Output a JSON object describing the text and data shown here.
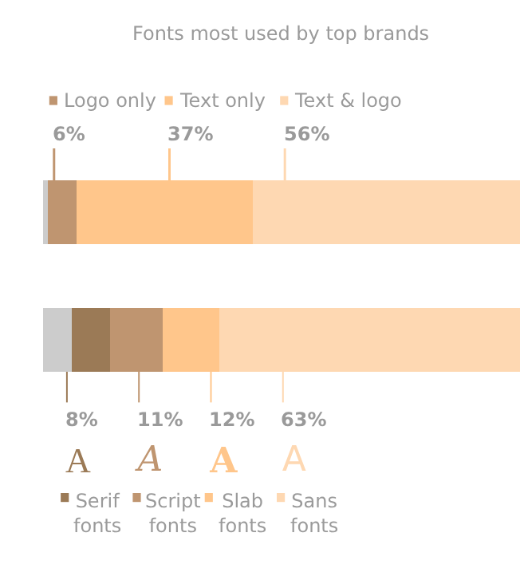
{
  "chart_data": {
    "type": "bar",
    "title": "Fonts most used by top brands",
    "orientation": "horizontal",
    "stacked": true,
    "tick_labels": false,
    "xlim": [
      0,
      100
    ],
    "annotations": [
      "A",
      "A",
      "A",
      "A"
    ],
    "legend": "bottom left",
    "categories": [
      null,
      null
    ],
    "series": [
      {
        "color": "#cccccc",
        "values": [
          1,
          6
        ]
      },
      {
        "name": "Logo only",
        "color": "#bf9570",
        "values": [
          6,
          null
        ],
        "value_labels": [
          "6%",
          null
        ]
      },
      {
        "name": "Text only",
        "color": "#ffc68b",
        "values": [
          37,
          null
        ],
        "value_labels": [
          "37%",
          null
        ]
      },
      {
        "name": "Text & logo",
        "color": "#fed8b2",
        "values": [
          56,
          null
        ],
        "value_labels": [
          "56%",
          null
        ]
      },
      {
        "name": "Serif fonts",
        "color": "#9b7a56",
        "values": [
          null,
          8
        ],
        "value_labels": [
          null,
          "8%"
        ]
      },
      {
        "name": "Script fonts",
        "color": "#bf9570",
        "values": [
          null,
          11
        ],
        "value_labels": [
          null,
          "11%"
        ]
      },
      {
        "name": "Slab fonts",
        "color": "#ffc68b",
        "values": [
          null,
          12
        ],
        "value_labels": [
          null,
          "12%"
        ]
      },
      {
        "name": "Sans fonts",
        "color": "#fed8b2",
        "values": [
          null,
          63
        ],
        "value_labels": [
          null,
          "63%"
        ]
      }
    ]
  }
}
